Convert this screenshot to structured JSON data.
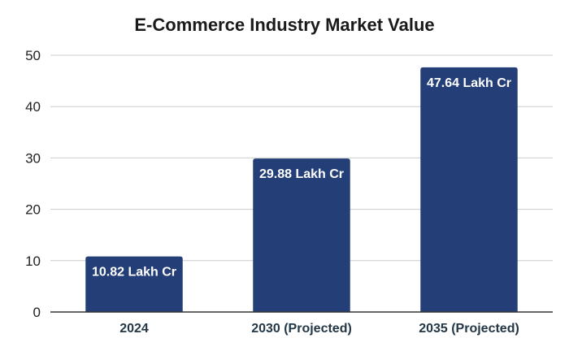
{
  "chart_data": {
    "type": "bar",
    "title": "E-Commerce Industry Market Value",
    "xlabel": "",
    "ylabel": "",
    "categories": [
      "2024",
      "2030 (Projected)",
      "2035 (Projected)"
    ],
    "values": [
      10.82,
      29.88,
      47.64
    ],
    "data_labels": [
      "10.82 Lakh Cr",
      "29.88 Lakh Cr",
      "47.64 Lakh Cr"
    ],
    "ylim": [
      0,
      50
    ],
    "yticks": [
      0,
      10,
      20,
      30,
      40,
      50
    ],
    "grid": true,
    "legend": "none",
    "colors": {
      "bar": "#243f78",
      "grid": "#cccccc",
      "baseline": "#333333"
    }
  }
}
